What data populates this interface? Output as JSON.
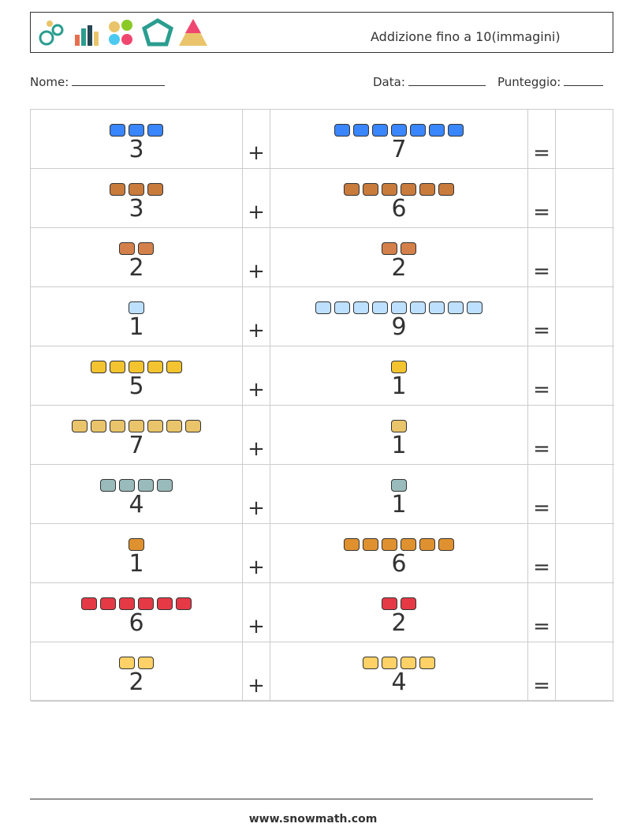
{
  "header": {
    "title": "Addizione fino a 10(immagini)"
  },
  "fields": {
    "name": "Nome:",
    "date": "Data:",
    "score": "Punteggio:"
  },
  "table": {
    "rows": [
      {
        "a": 3,
        "op": "+",
        "b": 7,
        "eq": "="
      },
      {
        "a": 3,
        "op": "+",
        "b": 6,
        "eq": "="
      },
      {
        "a": 2,
        "op": "+",
        "b": 2,
        "eq": "="
      },
      {
        "a": 1,
        "op": "+",
        "b": 9,
        "eq": "="
      },
      {
        "a": 5,
        "op": "+",
        "b": 1,
        "eq": "="
      },
      {
        "a": 7,
        "op": "+",
        "b": 1,
        "eq": "="
      },
      {
        "a": 4,
        "op": "+",
        "b": 1,
        "eq": "="
      },
      {
        "a": 1,
        "op": "+",
        "b": 6,
        "eq": "="
      },
      {
        "a": 6,
        "op": "+",
        "b": 2,
        "eq": "="
      },
      {
        "a": 2,
        "op": "+",
        "b": 4,
        "eq": "="
      }
    ]
  },
  "footer": {
    "url": "www.snowmath.com"
  }
}
